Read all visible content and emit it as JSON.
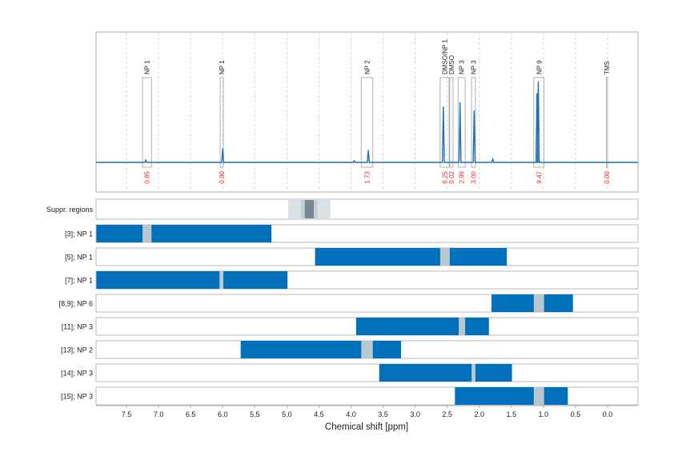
{
  "chart_data": [
    {
      "type": "line",
      "title": "",
      "xlabel": "Chemical shift [ppm]",
      "xlim": [
        7.97,
        -0.47
      ],
      "x_reversed": true,
      "grid": "vertical dashed every 0.5 ppm",
      "series_color": "#1f6fb4",
      "peaks": [
        {
          "ppm": 7.2,
          "intensity": 0.03
        },
        {
          "ppm": 6.0,
          "intensity": 0.17
        },
        {
          "ppm": 3.95,
          "intensity": 0.02
        },
        {
          "ppm": 3.73,
          "intensity": 0.15
        },
        {
          "ppm": 2.56,
          "intensity": 0.69
        },
        {
          "ppm": 2.3,
          "intensity": 0.74
        },
        {
          "ppm": 2.08,
          "intensity": 0.64
        },
        {
          "ppm": 1.79,
          "intensity": 0.04
        },
        {
          "ppm": 1.1,
          "intensity": 0.85
        },
        {
          "ppm": 1.08,
          "intensity": 1.0
        }
      ],
      "integration_regions": [
        {
          "label": "NP 1",
          "from": 7.25,
          "to": 7.11,
          "value": "0.85"
        },
        {
          "label": "NP 1",
          "from": 6.04,
          "to": 5.99,
          "value": "0.90"
        },
        {
          "label": "NP 2",
          "from": 3.84,
          "to": 3.66,
          "value": "1.73"
        },
        {
          "label": "DMSO/NP 1",
          "from": 2.61,
          "to": 2.47,
          "value": "6.25"
        },
        {
          "label": "DMSO",
          "from": 2.46,
          "to": 2.41,
          "value": "0.02"
        },
        {
          "label": "NP 3",
          "from": 2.33,
          "to": 2.22,
          "value": "2.99"
        },
        {
          "label": "NP 3",
          "from": 2.12,
          "to": 2.06,
          "value": "3.00"
        },
        {
          "label": "NP 9",
          "from": 1.15,
          "to": 0.99,
          "value": "9.47"
        },
        {
          "label": "TMS",
          "from": 0.02,
          "to": 0.0,
          "value": "0.00"
        }
      ],
      "value_color": "#e8262a"
    },
    {
      "type": "range-bars",
      "xlabel": "Chemical shift [ppm]",
      "xticks": [
        "7.5",
        "7.0",
        "6.5",
        "6.0",
        "5.5",
        "5.0",
        "4.5",
        "4.0",
        "3.5",
        "3.0",
        "2.5",
        "2.0",
        "1.5",
        "1.0",
        "0.5",
        "0.0"
      ],
      "suppressed": {
        "label": "Suppr. regions",
        "outer": [
          4.98,
          4.32
        ],
        "middle": [
          4.78,
          4.52
        ],
        "inner": [
          4.72,
          4.58
        ]
      },
      "bar_color": "#0070bb",
      "gap_color": "#b9c8d0",
      "rows": [
        {
          "label": "[3]; NP 1",
          "from": 7.97,
          "to": 5.24,
          "gap": [
            7.25,
            7.11
          ]
        },
        {
          "label": "[5]; NP 1",
          "from": 4.56,
          "to": 1.57,
          "gap": [
            2.61,
            2.46
          ]
        },
        {
          "label": "[7]; NP 1",
          "from": 7.97,
          "to": 4.99,
          "gap": [
            6.05,
            5.99
          ]
        },
        {
          "label": "[8,9]; NP 6",
          "from": 1.81,
          "to": 0.54,
          "gap": [
            1.15,
            0.99
          ]
        },
        {
          "label": "[11]; NP 3",
          "from": 3.92,
          "to": 1.85,
          "gap": [
            2.32,
            2.22
          ]
        },
        {
          "label": "[13]; NP 2",
          "from": 5.72,
          "to": 3.22,
          "gap": [
            3.84,
            3.66
          ]
        },
        {
          "label": "[14]; NP 3",
          "from": 3.56,
          "to": 1.49,
          "gap": [
            2.12,
            2.06
          ]
        },
        {
          "label": "[15]; NP 3",
          "from": 2.38,
          "to": 0.62,
          "gap": [
            1.15,
            0.99
          ]
        }
      ]
    }
  ]
}
